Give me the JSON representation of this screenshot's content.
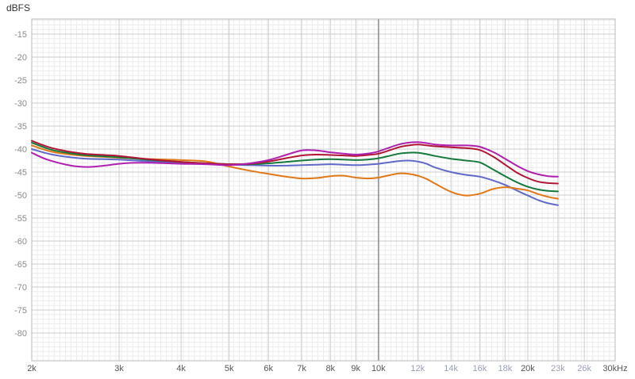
{
  "chart_data": {
    "type": "line",
    "title": "",
    "unit_label": "dBFS",
    "xlabel": "",
    "ylabel": "dBFS",
    "x_scale": "log",
    "xlim": [
      2000,
      30000
    ],
    "ylim": [
      -83,
      -12
    ],
    "grid": {
      "minor_db_step": 1,
      "major_db_step": 5,
      "minor_color": "#ececec",
      "major_color": "#cccccc",
      "border_color": "#b8b8b8",
      "cursor_color": "#666666"
    },
    "cursor_freq": 10000,
    "y_ticks": [
      {
        "value": -15,
        "label": "-15"
      },
      {
        "value": -20,
        "label": "-20"
      },
      {
        "value": -25,
        "label": "-25"
      },
      {
        "value": -30,
        "label": "-30"
      },
      {
        "value": -35,
        "label": "-35"
      },
      {
        "value": -40,
        "label": "-40"
      },
      {
        "value": -45,
        "label": "-45"
      },
      {
        "value": -50,
        "label": "-50"
      },
      {
        "value": -55,
        "label": "-55"
      },
      {
        "value": -60,
        "label": "-60"
      },
      {
        "value": -65,
        "label": "-65"
      },
      {
        "value": -70,
        "label": "-70"
      },
      {
        "value": -75,
        "label": "-75"
      },
      {
        "value": -80,
        "label": "-80"
      }
    ],
    "x_ticks": [
      {
        "freq": 2000,
        "label": "2k",
        "muted": false
      },
      {
        "freq": 3000,
        "label": "3k",
        "muted": false
      },
      {
        "freq": 4000,
        "label": "4k",
        "muted": false
      },
      {
        "freq": 5000,
        "label": "5k",
        "muted": false
      },
      {
        "freq": 6000,
        "label": "6k",
        "muted": false
      },
      {
        "freq": 7000,
        "label": "7k",
        "muted": false
      },
      {
        "freq": 8000,
        "label": "8k",
        "muted": false
      },
      {
        "freq": 9000,
        "label": "9k",
        "muted": false
      },
      {
        "freq": 10000,
        "label": "10k",
        "muted": false
      },
      {
        "freq": 12000,
        "label": "12k",
        "muted": true
      },
      {
        "freq": 14000,
        "label": "14k",
        "muted": true
      },
      {
        "freq": 16000,
        "label": "16k",
        "muted": true
      },
      {
        "freq": 18000,
        "label": "18k",
        "muted": true
      },
      {
        "freq": 20000,
        "label": "20k",
        "muted": false
      },
      {
        "freq": 23000,
        "label": "23k",
        "muted": true
      },
      {
        "freq": 26000,
        "label": "26k",
        "muted": true
      },
      {
        "freq": 30000,
        "label": "30kHz",
        "muted": false
      }
    ],
    "series": [
      {
        "name": "blue",
        "color": "#6068c8",
        "points": [
          [
            2000,
            -40.0
          ],
          [
            2200,
            -41.2
          ],
          [
            2500,
            -42.0
          ],
          [
            2800,
            -42.2
          ],
          [
            3000,
            -42.3
          ],
          [
            3500,
            -42.7
          ],
          [
            4000,
            -43.0
          ],
          [
            4500,
            -43.2
          ],
          [
            5000,
            -43.4
          ],
          [
            5500,
            -43.5
          ],
          [
            6000,
            -43.6
          ],
          [
            6500,
            -43.6
          ],
          [
            7000,
            -43.5
          ],
          [
            7500,
            -43.4
          ],
          [
            8000,
            -43.3
          ],
          [
            8500,
            -43.4
          ],
          [
            9000,
            -43.5
          ],
          [
            9500,
            -43.4
          ],
          [
            10000,
            -43.2
          ],
          [
            10500,
            -42.9
          ],
          [
            11000,
            -42.6
          ],
          [
            11500,
            -42.5
          ],
          [
            12000,
            -42.7
          ],
          [
            12500,
            -43.2
          ],
          [
            13000,
            -44.0
          ],
          [
            14000,
            -45.0
          ],
          [
            15000,
            -45.6
          ],
          [
            16000,
            -46.0
          ],
          [
            17000,
            -46.8
          ],
          [
            18000,
            -47.8
          ],
          [
            19000,
            -49.0
          ],
          [
            20000,
            -50.1
          ],
          [
            21000,
            -51.1
          ],
          [
            22000,
            -51.8
          ],
          [
            23000,
            -52.2
          ]
        ]
      },
      {
        "name": "orange",
        "color": "#e07818",
        "points": [
          [
            2000,
            -39.2
          ],
          [
            2200,
            -40.6
          ],
          [
            2500,
            -41.4
          ],
          [
            2800,
            -41.7
          ],
          [
            3000,
            -41.9
          ],
          [
            3500,
            -42.2
          ],
          [
            4000,
            -42.4
          ],
          [
            4500,
            -42.7
          ],
          [
            5000,
            -43.8
          ],
          [
            5500,
            -44.7
          ],
          [
            6000,
            -45.4
          ],
          [
            6500,
            -46.0
          ],
          [
            7000,
            -46.4
          ],
          [
            7500,
            -46.3
          ],
          [
            8000,
            -45.9
          ],
          [
            8500,
            -45.8
          ],
          [
            9000,
            -46.2
          ],
          [
            9500,
            -46.4
          ],
          [
            10000,
            -46.2
          ],
          [
            10500,
            -45.7
          ],
          [
            11000,
            -45.3
          ],
          [
            11500,
            -45.4
          ],
          [
            12000,
            -45.8
          ],
          [
            12500,
            -46.5
          ],
          [
            13000,
            -47.5
          ],
          [
            14000,
            -49.3
          ],
          [
            15000,
            -50.1
          ],
          [
            16000,
            -49.7
          ],
          [
            17000,
            -48.7
          ],
          [
            18000,
            -48.3
          ],
          [
            19000,
            -48.6
          ],
          [
            20000,
            -49.0
          ],
          [
            21000,
            -49.8
          ],
          [
            22000,
            -50.4
          ],
          [
            23000,
            -50.8
          ]
        ]
      },
      {
        "name": "green",
        "color": "#157a3c",
        "points": [
          [
            2000,
            -38.6
          ],
          [
            2200,
            -40.2
          ],
          [
            2500,
            -41.2
          ],
          [
            2800,
            -41.6
          ],
          [
            3000,
            -41.8
          ],
          [
            3500,
            -42.4
          ],
          [
            4000,
            -42.8
          ],
          [
            4500,
            -43.1
          ],
          [
            5000,
            -43.3
          ],
          [
            5500,
            -43.3
          ],
          [
            6000,
            -43.1
          ],
          [
            6500,
            -42.8
          ],
          [
            7000,
            -42.5
          ],
          [
            7500,
            -42.3
          ],
          [
            8000,
            -42.2
          ],
          [
            8500,
            -42.3
          ],
          [
            9000,
            -42.4
          ],
          [
            9500,
            -42.3
          ],
          [
            10000,
            -42.0
          ],
          [
            10500,
            -41.5
          ],
          [
            11000,
            -41.0
          ],
          [
            11500,
            -40.8
          ],
          [
            12000,
            -40.8
          ],
          [
            12500,
            -41.1
          ],
          [
            13000,
            -41.5
          ],
          [
            14000,
            -42.1
          ],
          [
            15000,
            -42.5
          ],
          [
            16000,
            -42.9
          ],
          [
            17000,
            -44.4
          ],
          [
            18000,
            -45.9
          ],
          [
            19000,
            -47.2
          ],
          [
            20000,
            -48.2
          ],
          [
            21000,
            -48.8
          ],
          [
            22000,
            -49.1
          ],
          [
            23000,
            -49.2
          ]
        ]
      },
      {
        "name": "dark-red",
        "color": "#b01535",
        "points": [
          [
            2000,
            -38.2
          ],
          [
            2200,
            -39.8
          ],
          [
            2500,
            -40.9
          ],
          [
            2800,
            -41.3
          ],
          [
            3000,
            -41.5
          ],
          [
            3500,
            -42.3
          ],
          [
            4000,
            -42.8
          ],
          [
            4500,
            -43.1
          ],
          [
            5000,
            -43.3
          ],
          [
            5500,
            -43.2
          ],
          [
            6000,
            -42.7
          ],
          [
            6500,
            -42.0
          ],
          [
            7000,
            -41.4
          ],
          [
            7500,
            -41.2
          ],
          [
            8000,
            -41.3
          ],
          [
            8500,
            -41.4
          ],
          [
            9000,
            -41.5
          ],
          [
            9500,
            -41.3
          ],
          [
            10000,
            -41.0
          ],
          [
            10500,
            -40.3
          ],
          [
            11000,
            -39.6
          ],
          [
            11500,
            -39.2
          ],
          [
            12000,
            -39.0
          ],
          [
            12500,
            -39.2
          ],
          [
            13000,
            -39.4
          ],
          [
            14000,
            -39.6
          ],
          [
            15000,
            -39.8
          ],
          [
            16000,
            -40.2
          ],
          [
            17000,
            -41.6
          ],
          [
            18000,
            -43.4
          ],
          [
            19000,
            -45.1
          ],
          [
            20000,
            -46.3
          ],
          [
            21000,
            -47.1
          ],
          [
            22000,
            -47.4
          ],
          [
            23000,
            -47.5
          ]
        ]
      },
      {
        "name": "magenta",
        "color": "#b020b0",
        "points": [
          [
            2000,
            -40.8
          ],
          [
            2150,
            -42.3
          ],
          [
            2400,
            -43.6
          ],
          [
            2600,
            -43.9
          ],
          [
            2800,
            -43.6
          ],
          [
            3000,
            -43.2
          ],
          [
            3200,
            -43.0
          ],
          [
            3500,
            -43.0
          ],
          [
            4000,
            -43.2
          ],
          [
            4500,
            -43.3
          ],
          [
            5000,
            -43.5
          ],
          [
            5500,
            -43.1
          ],
          [
            6000,
            -42.4
          ],
          [
            6500,
            -41.3
          ],
          [
            7000,
            -40.3
          ],
          [
            7500,
            -40.3
          ],
          [
            8000,
            -40.7
          ],
          [
            8500,
            -41.0
          ],
          [
            9000,
            -41.2
          ],
          [
            9500,
            -41.0
          ],
          [
            10000,
            -40.5
          ],
          [
            10500,
            -39.7
          ],
          [
            11000,
            -39.0
          ],
          [
            11500,
            -38.6
          ],
          [
            12000,
            -38.5
          ],
          [
            12500,
            -38.7
          ],
          [
            13000,
            -39.0
          ],
          [
            14000,
            -39.2
          ],
          [
            15000,
            -39.2
          ],
          [
            16000,
            -39.5
          ],
          [
            17000,
            -40.6
          ],
          [
            18000,
            -42.1
          ],
          [
            19000,
            -43.6
          ],
          [
            20000,
            -44.8
          ],
          [
            21000,
            -45.5
          ],
          [
            22000,
            -45.9
          ],
          [
            23000,
            -46.0
          ]
        ]
      }
    ]
  }
}
